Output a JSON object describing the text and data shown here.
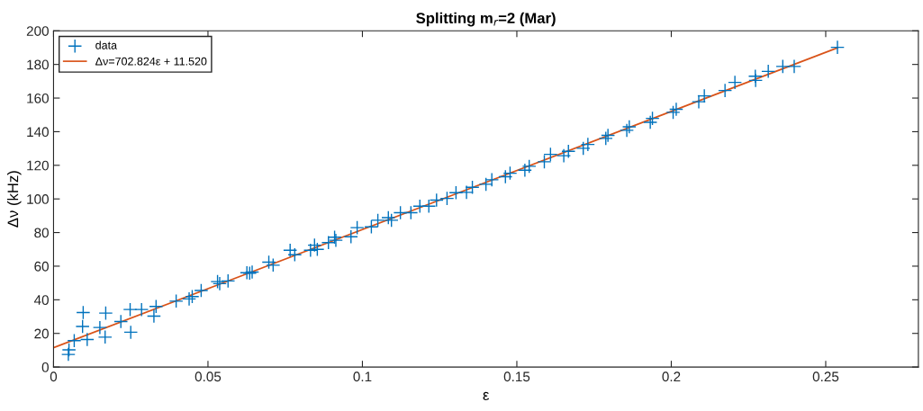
{
  "chart_data": {
    "type": "scatter",
    "title": "Splitting m$_{r}$=2 (Mar)",
    "xlabel": "ε",
    "ylabel": "Δν (kHz)",
    "xlim": [
      0,
      0.28
    ],
    "xticks": [
      0,
      0.05,
      0.1,
      0.15,
      0.2,
      0.25
    ],
    "ylim": [
      0,
      200
    ],
    "yticks": [
      0,
      20,
      40,
      60,
      80,
      100,
      120,
      140,
      160,
      180,
      200
    ],
    "grid": false,
    "legend": "top left",
    "marker": "cross",
    "series": [
      {
        "name": "data",
        "color": "#0072bd",
        "x": [
          0.0048,
          0.005,
          0.0067,
          0.0096,
          0.0094,
          0.0109,
          0.015,
          0.0169,
          0.0167,
          0.0218,
          0.0248,
          0.025,
          0.0285,
          0.0325,
          0.0332,
          0.0397,
          0.0439,
          0.0449,
          0.0478,
          0.0531,
          0.0538,
          0.0565,
          0.0626,
          0.0635,
          0.0643,
          0.0697,
          0.0711,
          0.0766,
          0.0781,
          0.0832,
          0.0845,
          0.0854,
          0.089,
          0.091,
          0.0914,
          0.0963,
          0.0983,
          0.1029,
          0.105,
          0.1084,
          0.1094,
          0.1123,
          0.1157,
          0.1186,
          0.1215,
          0.124,
          0.1274,
          0.1303,
          0.1337,
          0.1356,
          0.14,
          0.1419,
          0.1463,
          0.1478,
          0.1526,
          0.154,
          0.1589,
          0.1609,
          0.1652,
          0.1667,
          0.1715,
          0.173,
          0.1788,
          0.1795,
          0.1856,
          0.1864,
          0.1932,
          0.1939,
          0.2006,
          0.2016,
          0.2089,
          0.2107,
          0.2174,
          0.2206,
          0.2273,
          0.2272,
          0.2314,
          0.2361,
          0.2398,
          0.2538
        ],
        "values": [
          7.5,
          10.2,
          15.7,
          32.4,
          24.1,
          16.4,
          23.5,
          32.1,
          17.8,
          27.1,
          34.2,
          20.7,
          34.2,
          30.3,
          36.0,
          39.2,
          40.5,
          41.9,
          45.5,
          50.8,
          49.6,
          51.2,
          56.1,
          55.8,
          56.5,
          62.4,
          60.6,
          69.5,
          66.8,
          69.5,
          72.5,
          70.0,
          74.0,
          77.2,
          75.4,
          77.5,
          82.9,
          83.4,
          87.3,
          88.9,
          87.3,
          91.8,
          91.8,
          95.7,
          95.7,
          99.3,
          100.3,
          103.7,
          103.9,
          106.9,
          108.7,
          111.4,
          113.2,
          115.3,
          117.1,
          119.4,
          122.1,
          126.5,
          125.7,
          128.3,
          130.1,
          132.4,
          136.0,
          137.8,
          140.8,
          142.9,
          145.6,
          147.9,
          151.5,
          153.3,
          157.8,
          161.3,
          164.5,
          169.3,
          170.5,
          173.0,
          175.9,
          178.8,
          178.8,
          190.2
        ]
      },
      {
        "name": "Δν=702.824ε + 11.520",
        "type": "line",
        "color": "#d95319",
        "line_style": "solid",
        "marker": "none",
        "x": [
          0,
          0.2538
        ],
        "values": [
          11.5,
          189.9
        ]
      }
    ]
  }
}
